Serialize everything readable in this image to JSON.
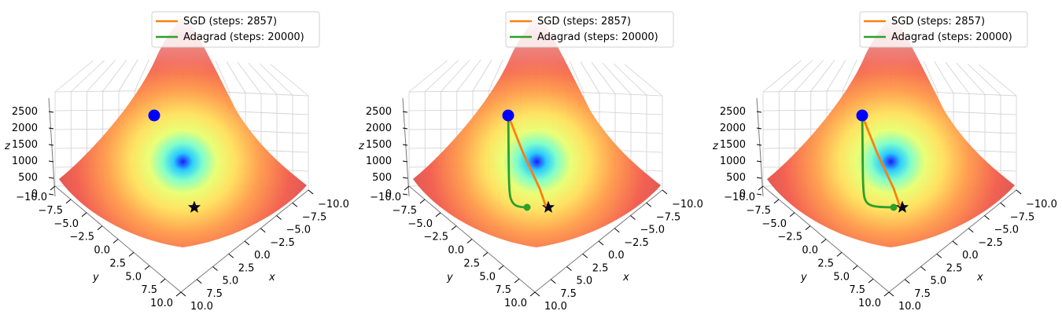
{
  "chart_data": [
    {
      "type": "surface3d",
      "zlabel": "z",
      "ylabel": "y",
      "xlabel": "x",
      "x_ticks": [
        "−10.0",
        "−7.5",
        "−5.0",
        "−2.5",
        "0.0",
        "2.5",
        "5.0",
        "7.5",
        "10.0"
      ],
      "y_ticks": [
        "−10.0",
        "−7.5",
        "−5.0",
        "−2.5",
        "0.0",
        "2.5",
        "5.0",
        "7.5",
        "10.0"
      ],
      "z_ticks": [
        "0",
        "500",
        "1000",
        "1500",
        "2000",
        "2500"
      ],
      "xlim": [
        -10,
        10
      ],
      "ylim": [
        -10,
        10
      ],
      "zlim": [
        0,
        2500
      ],
      "legend_position": "top-right",
      "legend": [
        "SGD (steps: 2857)",
        "Adagrad (steps: 20000)"
      ],
      "minimum_marker": "star",
      "start_point": {
        "x": -7.5,
        "y": -7.0
      },
      "show_paths": false
    },
    {
      "type": "surface3d",
      "zlabel": "z",
      "ylabel": "y",
      "xlabel": "x",
      "x_ticks": [
        "−10.0",
        "−7.5",
        "−5.0",
        "−2.5",
        "0.0",
        "2.5",
        "5.0",
        "7.5",
        "10.0"
      ],
      "y_ticks": [
        "−10.0",
        "−7.5",
        "−5.0",
        "−2.5",
        "0.0",
        "2.5",
        "5.0",
        "7.5",
        "10.0"
      ],
      "z_ticks": [
        "0",
        "500",
        "1000",
        "1500",
        "2000",
        "2500"
      ],
      "xlim": [
        -10,
        10
      ],
      "ylim": [
        -10,
        10
      ],
      "zlim": [
        0,
        2500
      ],
      "legend_position": "top-right",
      "legend": [
        "SGD (steps: 2857)",
        "Adagrad (steps: 20000)"
      ],
      "minimum_marker": "star",
      "start_point": {
        "x": -7.5,
        "y": -7.0
      },
      "show_paths": true,
      "adagrad_end": "short-of-minimum"
    },
    {
      "type": "surface3d",
      "zlabel": "z",
      "ylabel": "y",
      "xlabel": "x",
      "x_ticks": [
        "−10.0",
        "−7.5",
        "−5.0",
        "−2.5",
        "0.0",
        "2.5",
        "5.0",
        "7.5",
        "10.0"
      ],
      "y_ticks": [
        "−10.0",
        "−7.5",
        "−5.0",
        "−2.5",
        "0.0",
        "2.5",
        "5.0",
        "7.5",
        "10.0"
      ],
      "z_ticks": [
        "0",
        "500",
        "1000",
        "1500",
        "2000",
        "2500"
      ],
      "xlim": [
        -10,
        10
      ],
      "ylim": [
        -10,
        10
      ],
      "zlim": [
        0,
        2500
      ],
      "legend_position": "top-right",
      "legend": [
        "SGD (steps: 2857)",
        "Adagrad (steps: 20000)"
      ],
      "minimum_marker": "star",
      "start_point": {
        "x": -7.5,
        "y": -7.0
      },
      "show_paths": true,
      "adagrad_end": "near-minimum"
    }
  ],
  "colors": {
    "sgd": "#ff7f0e",
    "adagrad": "#2ca02c",
    "start_marker": "#0000ff",
    "grid": "#cfcfcf",
    "pane_edge": "#b0b0b0"
  }
}
